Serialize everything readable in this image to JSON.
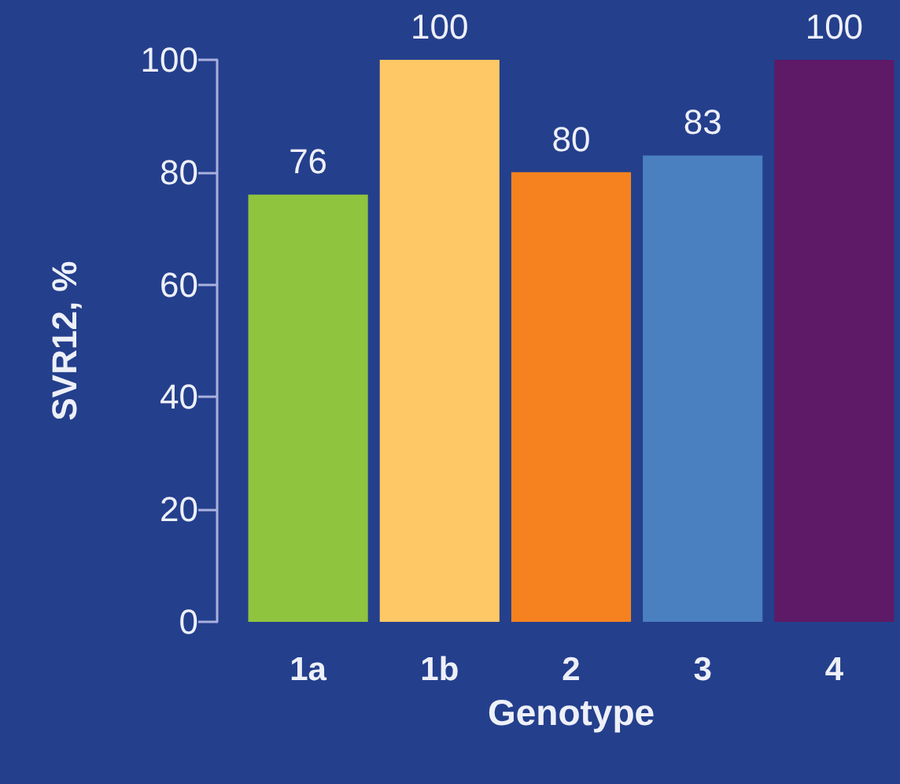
{
  "chart_data": {
    "type": "bar",
    "xlabel": "Genotype",
    "ylabel": "SVR12, %",
    "categories": [
      "1a",
      "1b",
      "2",
      "3",
      "4"
    ],
    "values": [
      76,
      100,
      80,
      83,
      100
    ],
    "colors": [
      "#8fc43f",
      "#fdc865",
      "#f5821f",
      "#4a7fc0",
      "#5e1a66"
    ],
    "ylim": [
      0,
      100
    ],
    "yticks": [
      0,
      20,
      40,
      60,
      80,
      100
    ],
    "grid": false,
    "data_labels": true
  }
}
